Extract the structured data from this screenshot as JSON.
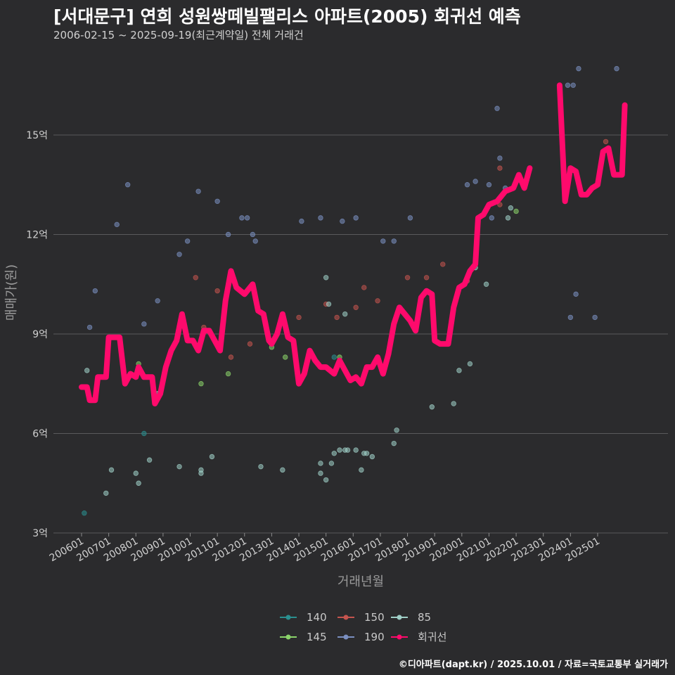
{
  "header": {
    "title": "[서대문구] 연희 성원쌍떼빌팰리스 아파트(2005) 회귀선 예측",
    "subtitle": "2006-02-15 ~ 2025-09-19(최근계약일) 전체 거래건"
  },
  "footer": {
    "credit": "©디아파트(dapt.kr) / 2025.10.01 / 자료=국토교통부 실거래가"
  },
  "colors": {
    "background": "#2b2b2d",
    "grid": "#5a5a5c",
    "140": "#2a8f8f",
    "145": "#8bd36a",
    "150": "#c4544e",
    "190": "#7a8fc0",
    "85": "#9fcfc7",
    "regression": "#ff0a6c"
  },
  "chart_data": {
    "type": "scatter",
    "title": "[서대문구] 연희 성원쌍떼빌팰리스 아파트(2005) 회귀선 예측",
    "xlabel": "거래년월",
    "ylabel": "매매가(원)",
    "xlim": [
      2006.0,
      2027.0
    ],
    "ylim": [
      2.8,
      17.5
    ],
    "yticks": [
      3,
      6,
      9,
      12,
      15
    ],
    "ytick_labels": [
      "3억",
      "6억",
      "9억",
      "12억",
      "15억"
    ],
    "xticks": [
      2006.0,
      2007.0,
      2008.0,
      2009.0,
      2010.0,
      2011.0,
      2012.0,
      2013.0,
      2014.0,
      2015.0,
      2016.0,
      2017.0,
      2018.0,
      2019.0,
      2020.0,
      2021.0,
      2022.0,
      2023.0,
      2024.0,
      2025.0
    ],
    "xtick_labels": [
      "200601",
      "200701",
      "200801",
      "200901",
      "201001",
      "201101",
      "201201",
      "201301",
      "201401",
      "201501",
      "201601",
      "201701",
      "201801",
      "201901",
      "202001",
      "202101",
      "202201",
      "202301",
      "202401",
      "202501"
    ],
    "legend": {
      "placement": "bottom",
      "entries": [
        {
          "name": "140",
          "color": "#2a8f8f"
        },
        {
          "name": "150",
          "color": "#c4544e"
        },
        {
          "name": "85",
          "color": "#9fcfc7"
        },
        {
          "name": "145",
          "color": "#8bd36a"
        },
        {
          "name": "190",
          "color": "#7a8fc0"
        },
        {
          "name": "회귀선",
          "color": "#ff0a6c"
        }
      ]
    },
    "series": [
      {
        "name": "140",
        "points": [
          [
            2006.1,
            3.6
          ],
          [
            2008.3,
            6.0
          ],
          [
            2015.3,
            8.3
          ]
        ]
      },
      {
        "name": "145",
        "points": [
          [
            2008.1,
            8.1
          ],
          [
            2010.4,
            7.5
          ],
          [
            2011.4,
            7.8
          ],
          [
            2013.0,
            8.6
          ],
          [
            2013.5,
            8.3
          ],
          [
            2015.5,
            8.3
          ],
          [
            2022.0,
            12.7
          ]
        ]
      },
      {
        "name": "150",
        "points": [
          [
            2010.2,
            10.7
          ],
          [
            2010.5,
            9.2
          ],
          [
            2011.0,
            10.3
          ],
          [
            2011.5,
            8.3
          ],
          [
            2012.2,
            8.7
          ],
          [
            2014.0,
            9.5
          ],
          [
            2015.0,
            9.9
          ],
          [
            2015.4,
            9.5
          ],
          [
            2016.1,
            9.8
          ],
          [
            2016.4,
            10.4
          ],
          [
            2016.9,
            10.0
          ],
          [
            2018.0,
            10.7
          ],
          [
            2018.7,
            10.7
          ],
          [
            2019.3,
            11.1
          ],
          [
            2020.2,
            10.6
          ],
          [
            2021.4,
            14.0
          ],
          [
            2021.4,
            12.9
          ],
          [
            2025.3,
            14.8
          ]
        ]
      },
      {
        "name": "190",
        "points": [
          [
            2006.3,
            9.2
          ],
          [
            2006.5,
            10.3
          ],
          [
            2007.3,
            12.3
          ],
          [
            2007.7,
            13.5
          ],
          [
            2008.3,
            9.3
          ],
          [
            2008.8,
            10.0
          ],
          [
            2009.6,
            11.4
          ],
          [
            2009.9,
            11.8
          ],
          [
            2010.3,
            13.3
          ],
          [
            2011.0,
            13.0
          ],
          [
            2011.4,
            12.0
          ],
          [
            2011.9,
            12.5
          ],
          [
            2012.1,
            12.5
          ],
          [
            2012.3,
            12.0
          ],
          [
            2012.4,
            11.8
          ],
          [
            2014.1,
            12.4
          ],
          [
            2014.8,
            12.5
          ],
          [
            2015.6,
            12.4
          ],
          [
            2016.1,
            12.5
          ],
          [
            2017.1,
            11.8
          ],
          [
            2017.5,
            11.8
          ],
          [
            2018.1,
            12.5
          ],
          [
            2020.2,
            13.5
          ],
          [
            2020.5,
            13.6
          ],
          [
            2021.3,
            15.8
          ],
          [
            2021.4,
            14.3
          ],
          [
            2021.6,
            13.4
          ],
          [
            2023.9,
            16.5
          ],
          [
            2024.1,
            16.5
          ],
          [
            2024.3,
            17.0
          ],
          [
            2024.0,
            9.5
          ],
          [
            2024.2,
            10.2
          ],
          [
            2024.9,
            9.5
          ],
          [
            2025.7,
            17.0
          ],
          [
            2021.1,
            12.5
          ],
          [
            2021.0,
            13.5
          ]
        ]
      },
      {
        "name": "85",
        "points": [
          [
            2006.2,
            7.9
          ],
          [
            2006.9,
            4.2
          ],
          [
            2007.1,
            4.9
          ],
          [
            2008.0,
            4.8
          ],
          [
            2008.1,
            4.5
          ],
          [
            2008.5,
            5.2
          ],
          [
            2008.8,
            7.2
          ],
          [
            2009.6,
            5.0
          ],
          [
            2010.4,
            4.8
          ],
          [
            2010.4,
            4.9
          ],
          [
            2010.8,
            5.3
          ],
          [
            2012.6,
            5.0
          ],
          [
            2013.4,
            4.9
          ],
          [
            2014.4,
            8.4
          ],
          [
            2014.8,
            4.8
          ],
          [
            2014.8,
            5.1
          ],
          [
            2015.0,
            4.6
          ],
          [
            2015.0,
            10.7
          ],
          [
            2015.1,
            9.9
          ],
          [
            2015.2,
            5.1
          ],
          [
            2015.3,
            5.4
          ],
          [
            2015.5,
            5.5
          ],
          [
            2015.7,
            5.5
          ],
          [
            2015.8,
            5.5
          ],
          [
            2015.7,
            9.6
          ],
          [
            2016.1,
            5.5
          ],
          [
            2016.3,
            4.9
          ],
          [
            2016.4,
            5.4
          ],
          [
            2016.5,
            5.4
          ],
          [
            2016.7,
            5.3
          ],
          [
            2017.5,
            5.7
          ],
          [
            2017.6,
            6.1
          ],
          [
            2018.9,
            6.8
          ],
          [
            2019.7,
            6.9
          ],
          [
            2019.9,
            7.9
          ],
          [
            2020.3,
            8.1
          ],
          [
            2020.5,
            11.0
          ],
          [
            2020.9,
            10.5
          ],
          [
            2021.7,
            12.5
          ],
          [
            2021.8,
            12.8
          ]
        ]
      }
    ],
    "regression": {
      "name": "회귀선",
      "segments": [
        [
          [
            2006.0,
            7.4
          ],
          [
            2006.2,
            7.4
          ],
          [
            2006.3,
            7.0
          ],
          [
            2006.5,
            7.0
          ],
          [
            2006.6,
            7.7
          ],
          [
            2006.9,
            7.7
          ],
          [
            2007.0,
            8.9
          ],
          [
            2007.4,
            8.9
          ],
          [
            2007.6,
            7.5
          ],
          [
            2007.8,
            7.8
          ],
          [
            2008.0,
            7.7
          ],
          [
            2008.1,
            8.0
          ],
          [
            2008.3,
            7.7
          ],
          [
            2008.6,
            7.7
          ],
          [
            2008.7,
            6.9
          ],
          [
            2008.9,
            7.2
          ],
          [
            2009.1,
            8.0
          ],
          [
            2009.3,
            8.5
          ],
          [
            2009.5,
            8.8
          ],
          [
            2009.7,
            9.6
          ],
          [
            2009.9,
            8.8
          ],
          [
            2010.1,
            8.8
          ],
          [
            2010.3,
            8.5
          ],
          [
            2010.5,
            9.1
          ],
          [
            2010.7,
            9.1
          ],
          [
            2010.9,
            8.8
          ],
          [
            2011.1,
            8.5
          ],
          [
            2011.3,
            10.0
          ],
          [
            2011.5,
            10.9
          ],
          [
            2011.7,
            10.4
          ],
          [
            2012.0,
            10.2
          ],
          [
            2012.3,
            10.5
          ],
          [
            2012.5,
            9.7
          ],
          [
            2012.7,
            9.6
          ],
          [
            2012.9,
            8.8
          ],
          [
            2013.0,
            8.7
          ],
          [
            2013.2,
            9.0
          ],
          [
            2013.4,
            9.6
          ],
          [
            2013.6,
            8.9
          ],
          [
            2013.8,
            8.8
          ],
          [
            2014.0,
            7.5
          ],
          [
            2014.2,
            7.8
          ],
          [
            2014.4,
            8.5
          ],
          [
            2014.6,
            8.2
          ],
          [
            2014.8,
            8.0
          ],
          [
            2015.0,
            8.0
          ],
          [
            2015.3,
            7.8
          ],
          [
            2015.5,
            8.2
          ],
          [
            2015.7,
            7.9
          ],
          [
            2015.9,
            7.6
          ],
          [
            2016.1,
            7.7
          ],
          [
            2016.3,
            7.5
          ],
          [
            2016.5,
            8.0
          ],
          [
            2016.7,
            8.0
          ],
          [
            2016.9,
            8.3
          ],
          [
            2017.1,
            7.8
          ],
          [
            2017.3,
            8.4
          ],
          [
            2017.5,
            9.3
          ],
          [
            2017.7,
            9.8
          ],
          [
            2017.9,
            9.6
          ],
          [
            2018.1,
            9.4
          ],
          [
            2018.3,
            9.1
          ],
          [
            2018.5,
            10.1
          ],
          [
            2018.7,
            10.3
          ],
          [
            2018.9,
            10.2
          ],
          [
            2019.0,
            8.8
          ],
          [
            2019.2,
            8.7
          ],
          [
            2019.5,
            8.7
          ],
          [
            2019.7,
            9.8
          ],
          [
            2019.9,
            10.4
          ],
          [
            2020.1,
            10.5
          ],
          [
            2020.3,
            10.9
          ],
          [
            2020.5,
            11.1
          ],
          [
            2020.6,
            12.5
          ],
          [
            2020.8,
            12.6
          ],
          [
            2021.0,
            12.9
          ],
          [
            2021.3,
            13.0
          ],
          [
            2021.6,
            13.3
          ],
          [
            2021.9,
            13.4
          ],
          [
            2022.1,
            13.8
          ],
          [
            2022.3,
            13.4
          ],
          [
            2022.5,
            14.0
          ]
        ],
        [
          [
            2023.6,
            16.5
          ],
          [
            2023.8,
            13.0
          ],
          [
            2024.0,
            14.0
          ],
          [
            2024.2,
            13.9
          ],
          [
            2024.4,
            13.2
          ],
          [
            2024.6,
            13.2
          ],
          [
            2024.8,
            13.4
          ],
          [
            2025.0,
            13.5
          ],
          [
            2025.2,
            14.5
          ],
          [
            2025.4,
            14.6
          ],
          [
            2025.6,
            13.8
          ],
          [
            2025.9,
            13.8
          ],
          [
            2026.0,
            15.9
          ]
        ]
      ]
    }
  }
}
